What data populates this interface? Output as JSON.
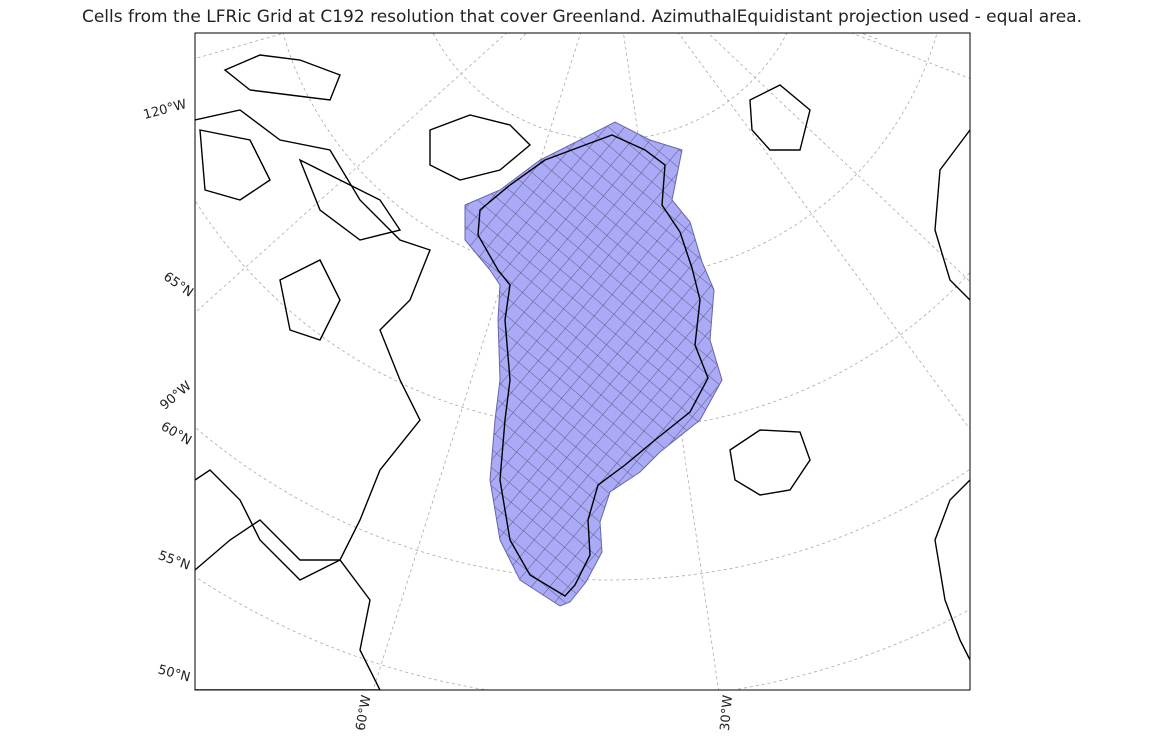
{
  "title": "Cells from the LFRic Grid at C192 resolution that cover Greenland. AzimuthalEquidistant projection used - equal area.",
  "labels": [
    "120°W",
    "65°N",
    "90°W",
    "60°N",
    "55°N",
    "50°N",
    "60°W",
    "30°W"
  ]
}
